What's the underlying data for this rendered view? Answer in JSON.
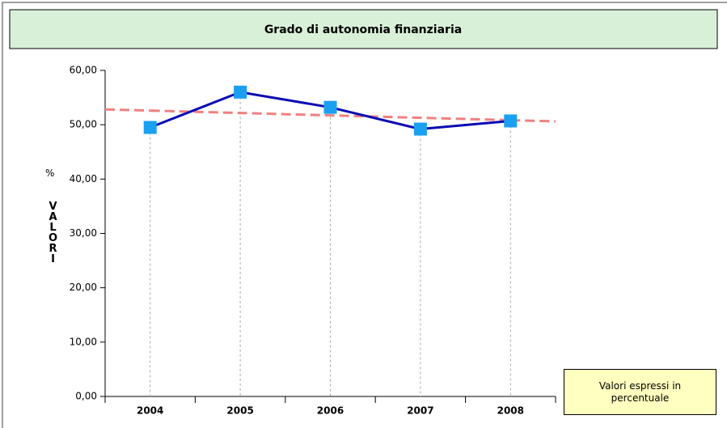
{
  "chart_data": {
    "type": "line",
    "title": "Grado di autonomia finanziaria",
    "y_axis_unit": "%",
    "y_axis_label": "VALORI",
    "note": "Valori espressi in percentuale",
    "categories": [
      "2004",
      "2005",
      "2006",
      "2007",
      "2008"
    ],
    "series": [
      {
        "name": "Grado di autonomia finanziaria",
        "color": "#0a0ab4",
        "marker_color": "#1aa0f0",
        "values": [
          49.5,
          56.0,
          53.2,
          49.2,
          50.7
        ]
      }
    ],
    "trend": {
      "color": "#f08080",
      "values": [
        52.6,
        52.16,
        51.72,
        51.28,
        50.84
      ]
    },
    "ylim": [
      0,
      60
    ],
    "yticks": [
      {
        "value": 0,
        "label": "0,00"
      },
      {
        "value": 10,
        "label": "10,00"
      },
      {
        "value": 20,
        "label": "20,00"
      },
      {
        "value": 30,
        "label": "30,00"
      },
      {
        "value": 40,
        "label": "40,00"
      },
      {
        "value": 50,
        "label": "50,00"
      },
      {
        "value": 60,
        "label": "60,00"
      }
    ]
  }
}
